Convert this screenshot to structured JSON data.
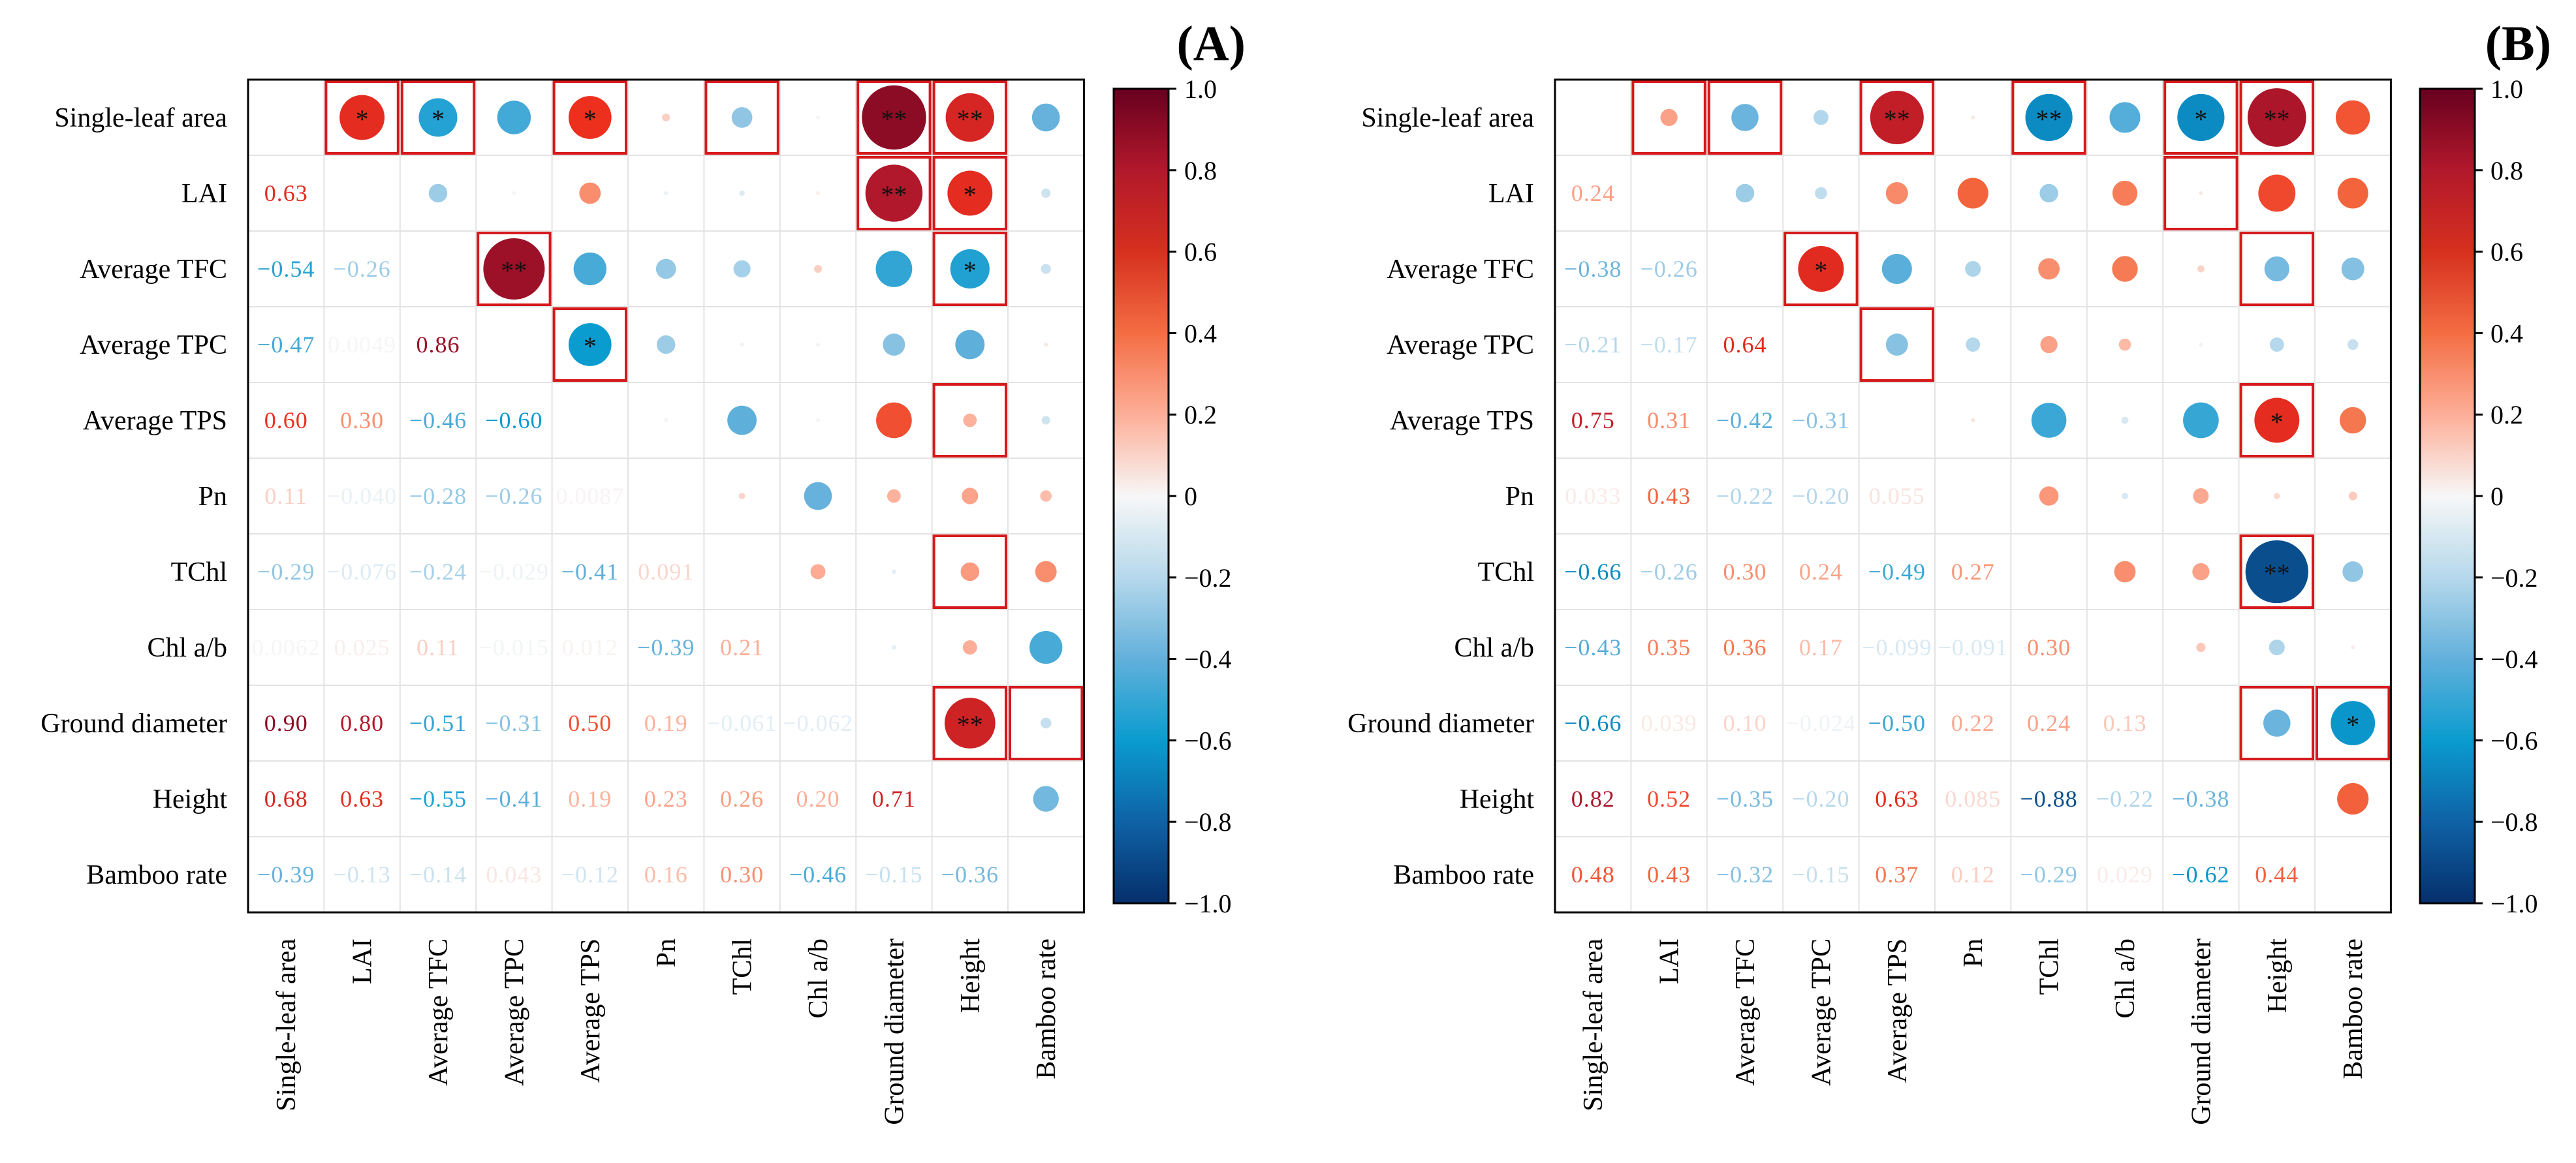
{
  "chart_data": [
    {
      "type": "heatmap",
      "panel_label": "(A)",
      "variables": [
        "Single-leaf area",
        "LAI",
        "Average TFC",
        "Average TPC",
        "Average TPS",
        "Pn",
        "TChl",
        "Chl a/b",
        "Ground diameter",
        "Height",
        "Bamboo rate"
      ],
      "lower_labels": [
        [],
        [
          "0.63"
        ],
        [
          "−0.54",
          "−0.26"
        ],
        [
          "−0.47",
          "0.0049",
          "0.86"
        ],
        [
          "0.60",
          "0.30",
          "−0.46",
          "−0.60"
        ],
        [
          "0.11",
          "−0.040",
          "−0.28",
          "−0.26",
          "0.0087"
        ],
        [
          "−0.29",
          "−0.076",
          "−0.24",
          "−0.029",
          "−0.41",
          "0.091"
        ],
        [
          "0.0062",
          "0.025",
          "0.11",
          "−0.015",
          "0.012",
          "−0.39",
          "0.21"
        ],
        [
          "0.90",
          "0.80",
          "−0.51",
          "−0.31",
          "0.50",
          "0.19",
          "−0.061",
          "−0.062"
        ],
        [
          "0.68",
          "0.63",
          "−0.55",
          "−0.41",
          "0.19",
          "0.23",
          "0.26",
          "0.20",
          "0.71"
        ],
        [
          "−0.39",
          "−0.13",
          "−0.14",
          "0.043",
          "−0.12",
          "0.16",
          "0.30",
          "−0.46",
          "−0.15",
          "−0.36"
        ]
      ],
      "significance": [
        {
          "row": 0,
          "col": 1,
          "stars": "*"
        },
        {
          "row": 0,
          "col": 2,
          "stars": "*"
        },
        {
          "row": 0,
          "col": 4,
          "stars": "*"
        },
        {
          "row": 0,
          "col": 8,
          "stars": "**"
        },
        {
          "row": 0,
          "col": 9,
          "stars": "**"
        },
        {
          "row": 1,
          "col": 8,
          "stars": "**"
        },
        {
          "row": 1,
          "col": 9,
          "stars": "*"
        },
        {
          "row": 2,
          "col": 3,
          "stars": "**"
        },
        {
          "row": 2,
          "col": 9,
          "stars": "*"
        },
        {
          "row": 3,
          "col": 4,
          "stars": "*"
        },
        {
          "row": 8,
          "col": 9,
          "stars": "**"
        }
      ],
      "boxed_cells": [
        [
          0,
          1
        ],
        [
          0,
          2
        ],
        [
          0,
          4
        ],
        [
          0,
          6
        ],
        [
          0,
          8
        ],
        [
          0,
          9
        ],
        [
          1,
          8
        ],
        [
          1,
          9
        ],
        [
          2,
          3
        ],
        [
          2,
          9
        ],
        [
          3,
          4
        ],
        [
          4,
          9
        ],
        [
          6,
          9
        ],
        [
          8,
          9
        ],
        [
          8,
          10
        ]
      ],
      "colorbar": {
        "min": -1.0,
        "max": 1.0,
        "ticks": [
          "1.0",
          "0.8",
          "0.6",
          "0.4",
          "0.2",
          "0",
          "−0.2",
          "−0.4",
          "−0.6",
          "−0.8",
          "−1.0"
        ]
      }
    },
    {
      "type": "heatmap",
      "panel_label": "(B)",
      "variables": [
        "Single-leaf area",
        "LAI",
        "Average TFC",
        "Average TPC",
        "Average TPS",
        "Pn",
        "TChl",
        "Chl a/b",
        "Ground diameter",
        "Height",
        "Bamboo rate"
      ],
      "lower_labels": [
        [],
        [
          "0.24"
        ],
        [
          "−0.38",
          "−0.26"
        ],
        [
          "−0.21",
          "−0.17",
          "0.64"
        ],
        [
          "0.75",
          "0.31",
          "−0.42",
          "−0.31"
        ],
        [
          "0.033",
          "0.43",
          "−0.22",
          "−0.20",
          "0.055"
        ],
        [
          "−0.66",
          "−0.26",
          "0.30",
          "0.24",
          "−0.49",
          "0.27"
        ],
        [
          "−0.43",
          "0.35",
          "0.36",
          "0.17",
          "−0.099",
          "−0.091",
          "0.30"
        ],
        [
          "−0.66",
          "0.039",
          "0.10",
          "−0.024",
          "−0.50",
          "0.22",
          "0.24",
          "0.13"
        ],
        [
          "0.82",
          "0.52",
          "−0.35",
          "−0.20",
          "0.63",
          "0.085",
          "−0.88",
          "−0.22",
          "−0.38"
        ],
        [
          "0.48",
          "0.43",
          "−0.32",
          "−0.15",
          "0.37",
          "0.12",
          "−0.29",
          "0.029",
          "−0.62",
          "0.44"
        ]
      ],
      "significance": [
        {
          "row": 0,
          "col": 4,
          "stars": "**"
        },
        {
          "row": 0,
          "col": 6,
          "stars": "**"
        },
        {
          "row": 0,
          "col": 8,
          "stars": "*"
        },
        {
          "row": 0,
          "col": 9,
          "stars": "**"
        },
        {
          "row": 2,
          "col": 3,
          "stars": "*"
        },
        {
          "row": 4,
          "col": 9,
          "stars": "*"
        },
        {
          "row": 6,
          "col": 9,
          "stars": "**"
        },
        {
          "row": 8,
          "col": 10,
          "stars": "*"
        }
      ],
      "boxed_cells": [
        [
          0,
          1
        ],
        [
          0,
          2
        ],
        [
          0,
          4
        ],
        [
          0,
          6
        ],
        [
          0,
          8
        ],
        [
          0,
          9
        ],
        [
          1,
          8
        ],
        [
          2,
          3
        ],
        [
          2,
          9
        ],
        [
          3,
          4
        ],
        [
          4,
          9
        ],
        [
          6,
          9
        ],
        [
          8,
          9
        ],
        [
          8,
          10
        ]
      ],
      "colorbar": {
        "min": -1.0,
        "max": 1.0,
        "ticks": [
          "1.0",
          "0.8",
          "0.6",
          "0.4",
          "0.2",
          "0",
          "−0.2",
          "−0.4",
          "−0.6",
          "−0.8",
          "−1.0"
        ]
      }
    }
  ]
}
